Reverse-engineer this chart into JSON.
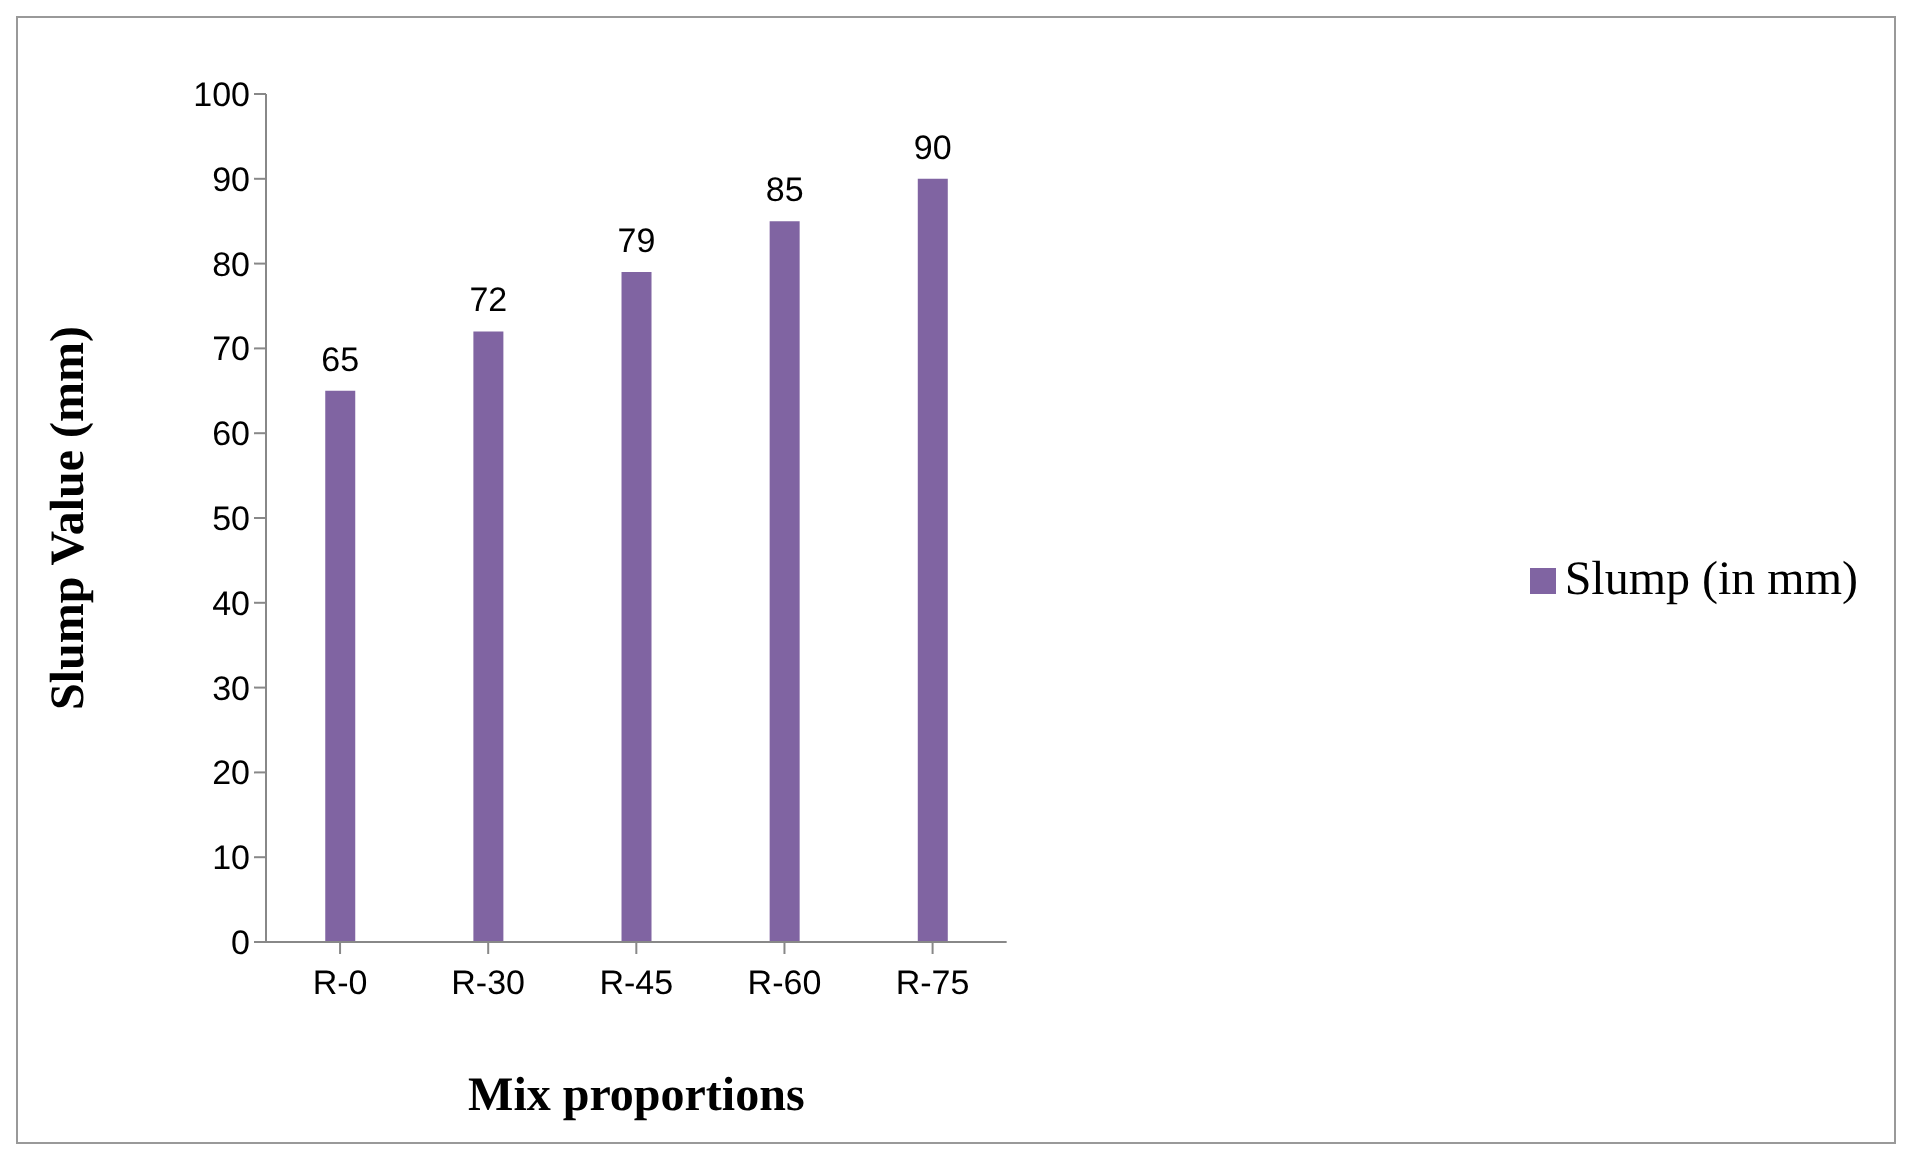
{
  "chart_data": {
    "type": "bar",
    "xlabel": "Mix proportions",
    "ylabel": "Slump Value (mm)",
    "categories": [
      "R-0",
      "R-30",
      "R-45",
      "R-60",
      "R-75"
    ],
    "series": [
      {
        "name": "Slump (in mm)",
        "color": "#8064a2",
        "values": [
          65,
          72,
          79,
          85,
          90
        ]
      }
    ],
    "ylim": [
      0,
      100
    ],
    "yticks": [
      0,
      10,
      20,
      30,
      40,
      50,
      60,
      70,
      80,
      90,
      100
    ],
    "grid": false,
    "legend": "right",
    "data_labels": true
  }
}
